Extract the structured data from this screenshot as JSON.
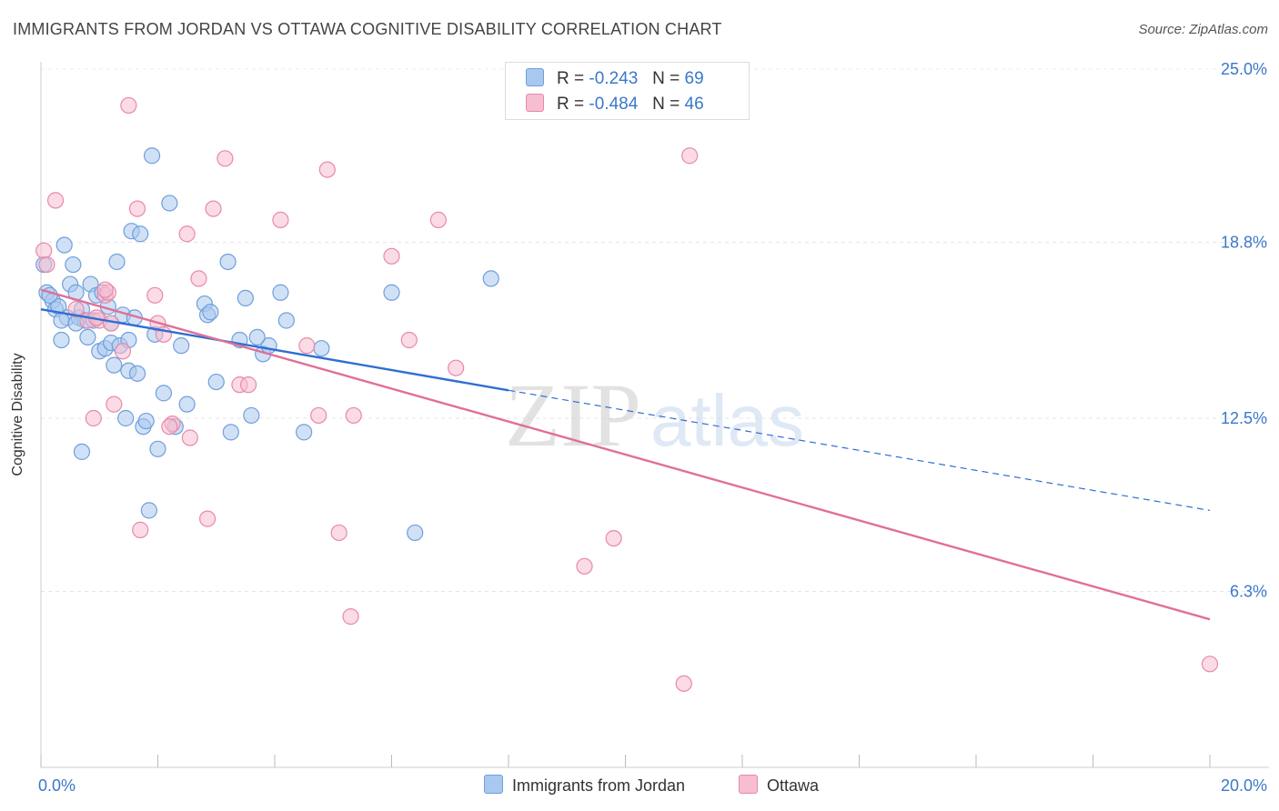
{
  "title": "IMMIGRANTS FROM JORDAN VS OTTAWA COGNITIVE DISABILITY CORRELATION CHART",
  "source": "Source: ZipAtlas.com",
  "watermark": {
    "zip": "ZIP",
    "atlas": "atlas"
  },
  "legend": {
    "r_label": "R =",
    "n_label": "N =",
    "rows": [
      {
        "r": "-0.243",
        "n": "69",
        "color": "#a9c8ef",
        "border": "#6f9fdc"
      },
      {
        "r": "-0.484",
        "n": "46",
        "color": "#f7bdd0",
        "border": "#e78aa9"
      }
    ]
  },
  "chart_data": {
    "type": "scatter",
    "title": "IMMIGRANTS FROM JORDAN VS OTTAWA COGNITIVE DISABILITY CORRELATION CHART",
    "xlabel": "",
    "ylabel": "Cognitive Disability",
    "xlim": [
      0,
      20
    ],
    "ylim": [
      0,
      25.0
    ],
    "x_tick_labels": [
      "0.0%",
      "20.0%"
    ],
    "y_ticks": [
      6.3,
      12.5,
      18.8,
      25.0
    ],
    "y_tick_labels": [
      "6.3%",
      "12.5%",
      "18.8%",
      "25.0%"
    ],
    "grid": true,
    "legend_position": "top-center",
    "series": [
      {
        "name": "Immigrants from Jordan",
        "color": "#a9c8ef",
        "stroke": "#6f9fdc",
        "line_color": "#2e6fd1",
        "trend": {
          "x0": 0,
          "y0": 16.4,
          "x1": 8.0,
          "y1": 13.5,
          "dash_to_x": 20,
          "dash_y": 9.2
        },
        "points": [
          [
            0.05,
            18.0
          ],
          [
            0.1,
            17.0
          ],
          [
            0.2,
            16.7
          ],
          [
            0.25,
            16.4
          ],
          [
            0.3,
            16.5
          ],
          [
            0.35,
            15.3
          ],
          [
            0.4,
            18.7
          ],
          [
            0.45,
            16.1
          ],
          [
            0.5,
            17.3
          ],
          [
            0.55,
            18.0
          ],
          [
            0.6,
            17.0
          ],
          [
            0.65,
            16.1
          ],
          [
            0.7,
            16.4
          ],
          [
            0.75,
            16.0
          ],
          [
            0.8,
            15.4
          ],
          [
            0.85,
            17.3
          ],
          [
            0.9,
            16.0
          ],
          [
            0.95,
            16.9
          ],
          [
            1.0,
            14.9
          ],
          [
            1.05,
            17.0
          ],
          [
            1.1,
            15.0
          ],
          [
            1.15,
            16.5
          ],
          [
            1.2,
            15.2
          ],
          [
            1.25,
            14.4
          ],
          [
            1.3,
            18.1
          ],
          [
            1.35,
            15.1
          ],
          [
            1.4,
            16.2
          ],
          [
            1.45,
            12.5
          ],
          [
            1.5,
            14.2
          ],
          [
            1.55,
            19.2
          ],
          [
            1.6,
            16.1
          ],
          [
            1.65,
            14.1
          ],
          [
            1.7,
            19.1
          ],
          [
            1.75,
            12.2
          ],
          [
            1.8,
            12.4
          ],
          [
            1.85,
            9.2
          ],
          [
            1.9,
            21.9
          ],
          [
            1.95,
            15.5
          ],
          [
            2.0,
            11.4
          ],
          [
            2.1,
            13.4
          ],
          [
            2.2,
            20.2
          ],
          [
            2.3,
            12.2
          ],
          [
            2.4,
            15.1
          ],
          [
            2.5,
            13.0
          ],
          [
            2.8,
            16.6
          ],
          [
            2.85,
            16.2
          ],
          [
            3.0,
            13.8
          ],
          [
            3.2,
            18.1
          ],
          [
            3.25,
            12.0
          ],
          [
            3.5,
            16.8
          ],
          [
            3.6,
            12.6
          ],
          [
            3.8,
            14.8
          ],
          [
            3.9,
            15.1
          ],
          [
            4.1,
            17.0
          ],
          [
            4.5,
            12.0
          ],
          [
            4.8,
            15.0
          ],
          [
            3.7,
            15.4
          ],
          [
            4.2,
            16.0
          ],
          [
            6.0,
            17.0
          ],
          [
            7.7,
            17.5
          ],
          [
            6.4,
            8.4
          ],
          [
            1.5,
            15.3
          ],
          [
            0.15,
            16.9
          ],
          [
            0.7,
            11.3
          ],
          [
            2.9,
            16.3
          ],
          [
            1.2,
            15.9
          ],
          [
            0.35,
            16.0
          ],
          [
            0.6,
            15.9
          ],
          [
            3.4,
            15.3
          ]
        ]
      },
      {
        "name": "Ottawa",
        "color": "#f7bdd0",
        "stroke": "#e78aa9",
        "line_color": "#e07099",
        "trend": {
          "x0": 0,
          "y0": 17.1,
          "x1": 20,
          "y1": 5.3
        },
        "points": [
          [
            0.05,
            18.5
          ],
          [
            0.25,
            20.3
          ],
          [
            0.6,
            16.4
          ],
          [
            0.8,
            16.0
          ],
          [
            0.9,
            12.5
          ],
          [
            1.0,
            16.0
          ],
          [
            1.1,
            16.9
          ],
          [
            1.15,
            17.0
          ],
          [
            1.25,
            13.0
          ],
          [
            1.4,
            14.9
          ],
          [
            1.5,
            23.7
          ],
          [
            1.65,
            20.0
          ],
          [
            1.7,
            8.5
          ],
          [
            1.95,
            16.9
          ],
          [
            2.0,
            15.9
          ],
          [
            2.1,
            15.5
          ],
          [
            2.25,
            12.3
          ],
          [
            2.5,
            19.1
          ],
          [
            2.55,
            11.8
          ],
          [
            2.7,
            17.5
          ],
          [
            2.85,
            8.9
          ],
          [
            2.95,
            20.0
          ],
          [
            3.15,
            21.8
          ],
          [
            3.4,
            13.7
          ],
          [
            3.55,
            13.7
          ],
          [
            4.1,
            19.6
          ],
          [
            4.55,
            15.1
          ],
          [
            4.75,
            12.6
          ],
          [
            4.9,
            21.4
          ],
          [
            5.1,
            8.4
          ],
          [
            5.3,
            5.4
          ],
          [
            5.35,
            12.6
          ],
          [
            6.0,
            18.3
          ],
          [
            6.3,
            15.3
          ],
          [
            6.8,
            19.6
          ],
          [
            7.1,
            14.3
          ],
          [
            9.3,
            7.2
          ],
          [
            9.8,
            8.2
          ],
          [
            11.0,
            3.0
          ],
          [
            11.1,
            21.9
          ],
          [
            20.0,
            3.7
          ],
          [
            0.1,
            18.0
          ],
          [
            1.1,
            17.1
          ],
          [
            0.95,
            16.1
          ],
          [
            2.2,
            12.2
          ],
          [
            1.2,
            15.9
          ]
        ]
      }
    ]
  }
}
